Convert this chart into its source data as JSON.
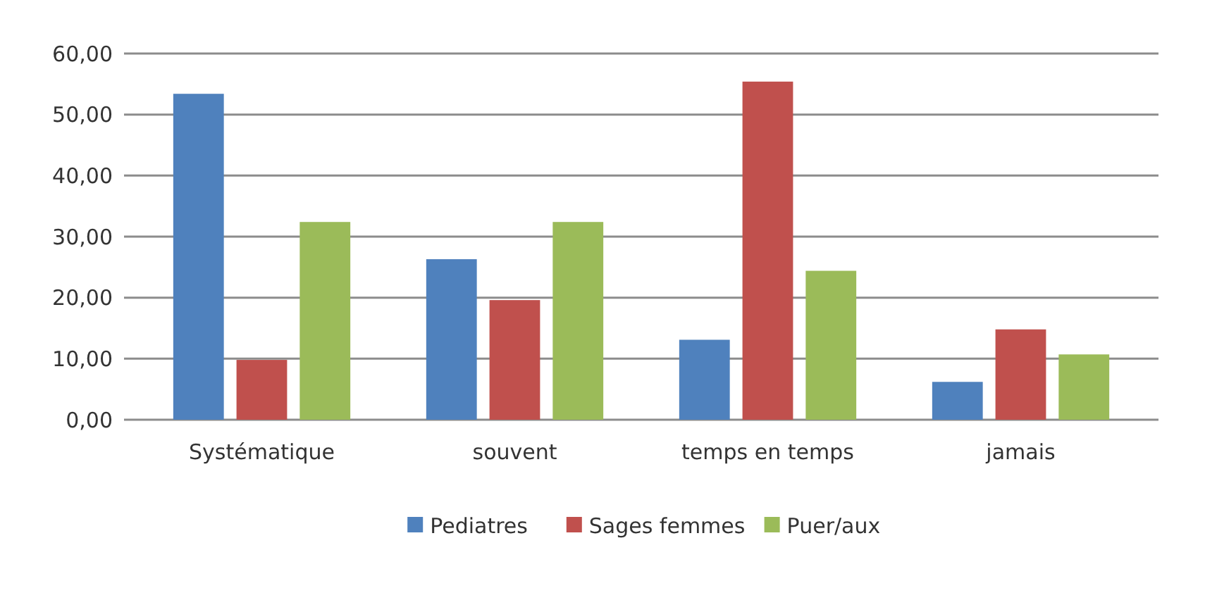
{
  "chart_data": {
    "type": "bar",
    "categories": [
      "Systématique",
      "souvent",
      "temps en temps",
      "jamais"
    ],
    "series": [
      {
        "name": "Pediatres",
        "color": "#4f81bd",
        "values": [
          53.4,
          26.3,
          13.1,
          6.2
        ]
      },
      {
        "name": "Sages femmes",
        "color": "#c0504d",
        "values": [
          9.8,
          19.6,
          55.4,
          14.8
        ]
      },
      {
        "name": "Puer/aux",
        "color": "#9bbb59",
        "values": [
          32.4,
          32.4,
          24.4,
          10.7
        ]
      }
    ],
    "ylim": [
      0,
      60
    ],
    "yticks": [
      {
        "value": 0,
        "label": "0,00"
      },
      {
        "value": 10,
        "label": "10,00"
      },
      {
        "value": 20,
        "label": "20,00"
      },
      {
        "value": 30,
        "label": "30,00"
      },
      {
        "value": 40,
        "label": "40,00"
      },
      {
        "value": 50,
        "label": "50,00"
      },
      {
        "value": 60,
        "label": "60,00"
      }
    ],
    "grid": "y",
    "legend": "bottom"
  }
}
